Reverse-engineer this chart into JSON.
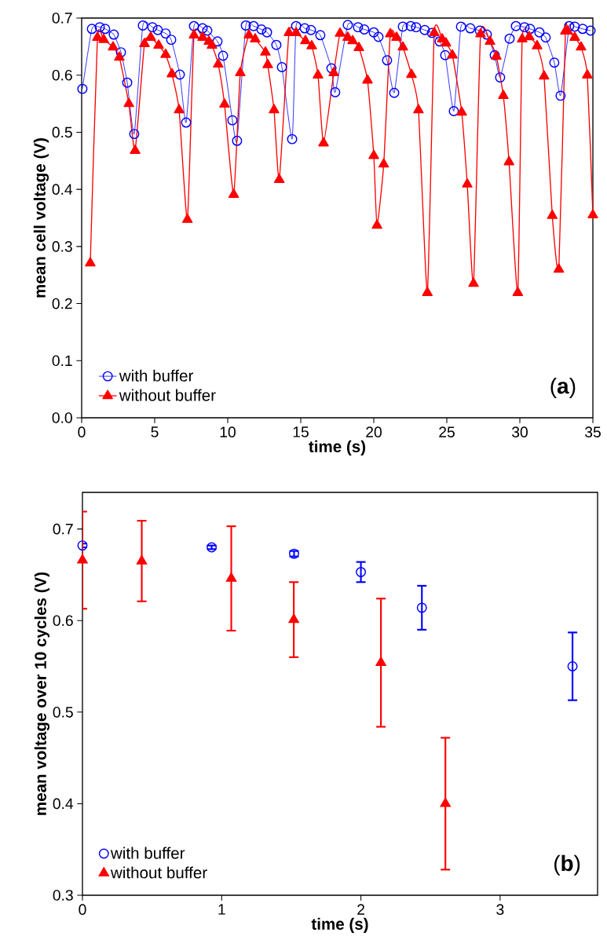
{
  "chart_data": [
    {
      "type": "line",
      "xlabel": "time (s)",
      "ylabel": "mean cell voltage (V)",
      "xlim": [
        0,
        35
      ],
      "ylim": [
        0,
        0.7
      ],
      "xticks": [
        0,
        5,
        10,
        15,
        20,
        25,
        30,
        35
      ],
      "yticks": [
        {
          "value": 0,
          "label": "0.0"
        },
        0.1,
        0.2,
        0.3,
        0.4,
        0.5,
        0.6,
        0.7
      ],
      "legend": "bottom left",
      "annotations": [
        "(**a**)"
      ],
      "series": [
        {
          "name": "with buffer",
          "color": "#0000ff",
          "marker": "circle",
          "x": [
            0.05,
            0.7,
            1.24,
            1.61,
            2.2,
            2.69,
            3.12,
            3.6,
            4.19,
            4.84,
            5.21,
            5.75,
            6.13,
            6.72,
            7.15,
            7.69,
            8.28,
            8.6,
            9.3,
            9.68,
            10.32,
            10.64,
            11.24,
            11.77,
            12.31,
            12.69,
            13.33,
            13.71,
            14.41,
            14.68,
            15.27,
            15.7,
            16.34,
            17.1,
            17.36,
            18.22,
            18.92,
            19.35,
            20.0,
            20.32,
            20.91,
            21.4,
            21.99,
            22.53,
            22.9,
            23.49,
            23.98,
            24.51,
            24.89,
            25.48,
            25.97,
            26.61,
            27.26,
            27.74,
            28.28,
            28.65,
            29.3,
            29.73,
            30.32,
            30.7,
            31.34,
            31.77,
            32.36,
            32.79,
            33.38,
            33.76,
            34.3,
            34.84
          ],
          "values": [
            0.576,
            0.681,
            0.684,
            0.681,
            0.671,
            0.64,
            0.587,
            0.497,
            0.687,
            0.684,
            0.679,
            0.673,
            0.662,
            0.601,
            0.517,
            0.686,
            0.682,
            0.678,
            0.659,
            0.634,
            0.521,
            0.485,
            0.687,
            0.686,
            0.68,
            0.675,
            0.653,
            0.614,
            0.488,
            0.686,
            0.682,
            0.679,
            0.67,
            0.612,
            0.57,
            0.688,
            0.684,
            0.68,
            0.675,
            0.667,
            0.626,
            0.569,
            0.685,
            0.686,
            0.684,
            0.679,
            0.674,
            0.659,
            0.635,
            0.537,
            0.685,
            0.682,
            0.678,
            0.671,
            0.635,
            0.596,
            0.664,
            0.686,
            0.684,
            0.681,
            0.675,
            0.666,
            0.622,
            0.564,
            0.686,
            0.685,
            0.681,
            0.678
          ]
        },
        {
          "name": "without buffer",
          "color": "#ff0000",
          "marker": "triangle",
          "x": [
            0.59,
            1.08,
            1.51,
            2.15,
            2.58,
            3.23,
            3.66,
            4.3,
            4.73,
            5.27,
            5.75,
            6.18,
            6.67,
            7.24,
            7.69,
            8.28,
            8.71,
            8.92,
            9.35,
            9.78,
            10.41,
            10.86,
            11.45,
            11.88,
            12.58,
            12.74,
            13.17,
            13.53,
            14.19,
            14.68,
            15.32,
            15.75,
            16.18,
            16.56,
            17.26,
            17.69,
            18.22,
            18.55,
            18.98,
            19.57,
            20.0,
            20.22,
            20.68,
            21.13,
            21.56,
            21.99,
            22.58,
            23.06,
            23.67,
            24.14,
            24.68,
            24.94,
            25.38,
            26.02,
            26.4,
            26.83,
            27.31,
            27.96,
            28.39,
            28.87,
            29.26,
            29.86,
            30.16,
            30.64,
            31.18,
            31.66,
            32.22,
            32.67,
            33.12,
            33.28,
            33.76,
            34.19,
            34.62,
            35
          ],
          "values": [
            0.271,
            0.666,
            0.662,
            0.649,
            0.631,
            0.55,
            0.468,
            0.655,
            0.666,
            0.652,
            0.636,
            0.602,
            0.539,
            0.347,
            0.67,
            0.666,
            0.659,
            0.652,
            0.619,
            0.549,
            0.391,
            0.604,
            0.67,
            0.663,
            0.64,
            0.618,
            0.539,
            0.417,
            0.674,
            0.674,
            0.66,
            0.651,
            0.6,
            0.481,
            0.604,
            0.673,
            0.666,
            0.66,
            0.648,
            0.591,
            0.459,
            0.337,
            0.444,
            0.672,
            0.666,
            0.649,
            0.601,
            0.539,
            0.219,
            0.674,
            0.663,
            0.656,
            0.635,
            0.535,
            0.409,
            0.235,
            0.672,
            0.659,
            0.633,
            0.564,
            0.448,
            0.219,
            0.663,
            0.667,
            0.651,
            0.598,
            0.354,
            0.26,
            0.677,
            0.677,
            0.666,
            0.649,
            0.6,
            0.355
          ]
        }
      ]
    },
    {
      "type": "scatter",
      "xlabel": "time (s)",
      "ylabel": "mean voltage over 10 cycles (V)",
      "xlim": [
        0,
        3.7
      ],
      "ylim": [
        0.3,
        0.74
      ],
      "xticks": [
        0,
        1,
        2,
        3
      ],
      "yticks": [
        0.3,
        0.4,
        0.5,
        0.6,
        0.7
      ],
      "legend": "bottom left",
      "annotations": [
        "(**b**)"
      ],
      "series": [
        {
          "name": "with buffer",
          "color": "#0000ff",
          "marker": "circle",
          "x": [
            0,
            0.928,
            1.52,
            2.0,
            2.438,
            3.52
          ],
          "values": [
            0.682,
            0.68,
            0.673,
            0.653,
            0.614,
            0.55
          ],
          "errors": [
            0.002,
            0.002,
            0.003,
            0.011,
            0.024,
            0.037
          ]
        },
        {
          "name": "without buffer",
          "color": "#ff0000",
          "marker": "triangle",
          "x": [
            0,
            0.426,
            1.069,
            1.518,
            2.144,
            2.607
          ],
          "values": [
            0.666,
            0.665,
            0.646,
            0.601,
            0.554,
            0.4
          ],
          "errors": [
            0.053,
            0.044,
            0.057,
            0.041,
            0.07,
            0.072
          ]
        }
      ]
    }
  ]
}
